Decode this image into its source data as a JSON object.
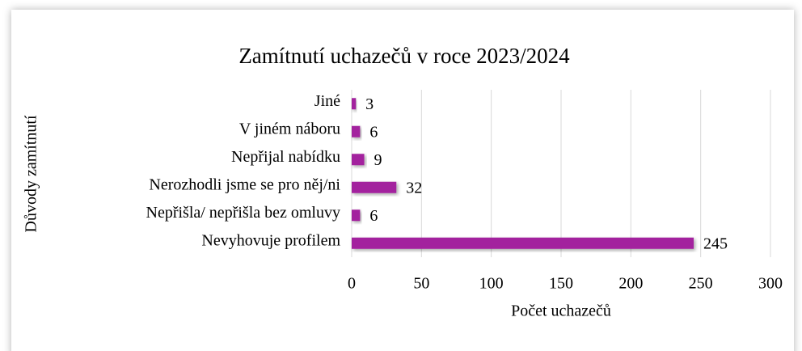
{
  "chart_data": {
    "type": "bar",
    "orientation": "horizontal",
    "title": "Zamítnutí uchazečů v roce 2023/2024",
    "x_label": "Počet uchazečů",
    "y_label": "Důvody zamítnutí",
    "categories": [
      "Jiné",
      "V jiném náboru",
      "Nepřijal nabídku",
      "Nerozhodli jsme se pro něj/ni",
      "Nepřišla/ nepřišla bez omluvy",
      "Nevyhovuje profilem"
    ],
    "values": [
      3,
      6,
      9,
      32,
      6,
      245
    ],
    "color": "#a3209e",
    "xlim": [
      0,
      300
    ],
    "xticks": [
      0,
      50,
      100,
      150,
      200,
      250,
      300
    ],
    "grid": true
  }
}
